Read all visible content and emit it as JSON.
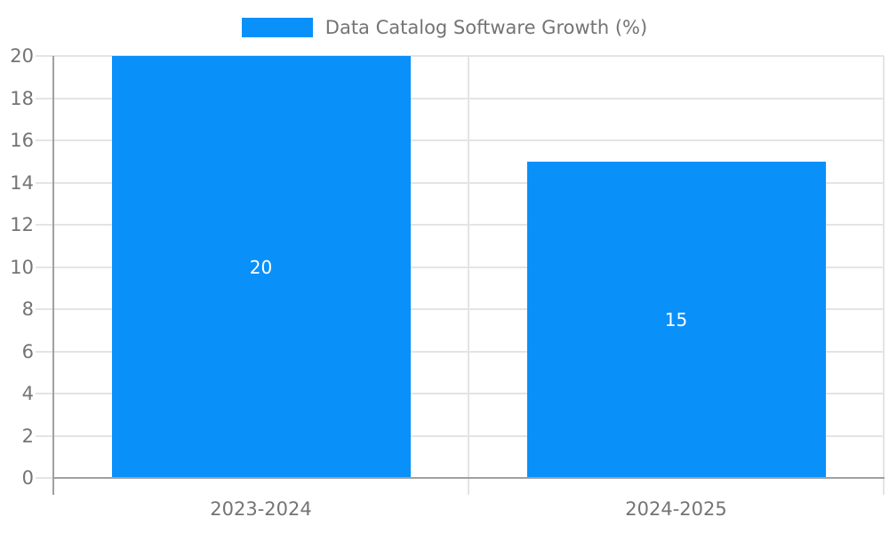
{
  "legend": {
    "label": "Data Catalog Software Growth (%)"
  },
  "chart_data": {
    "type": "bar",
    "title": "Data Catalog Software Growth (%)",
    "categories": [
      "2023-2024",
      "2024-2025"
    ],
    "values": [
      20,
      15
    ],
    "bar_labels": [
      "20",
      "15"
    ],
    "xlabel": "",
    "ylabel": "",
    "ylim": [
      0,
      20
    ],
    "yticks": [
      0,
      2,
      4,
      6,
      8,
      10,
      12,
      14,
      16,
      18,
      20
    ],
    "grid": true,
    "legend_position": "top-center",
    "bar_label_position": "center-inside"
  },
  "colors": {
    "bar": "#0a90f9",
    "axis": "#a0a0a0",
    "grid": "#e4e4e4",
    "text": "#747474",
    "value_label": "#ffffff",
    "background": "#ffffff"
  }
}
